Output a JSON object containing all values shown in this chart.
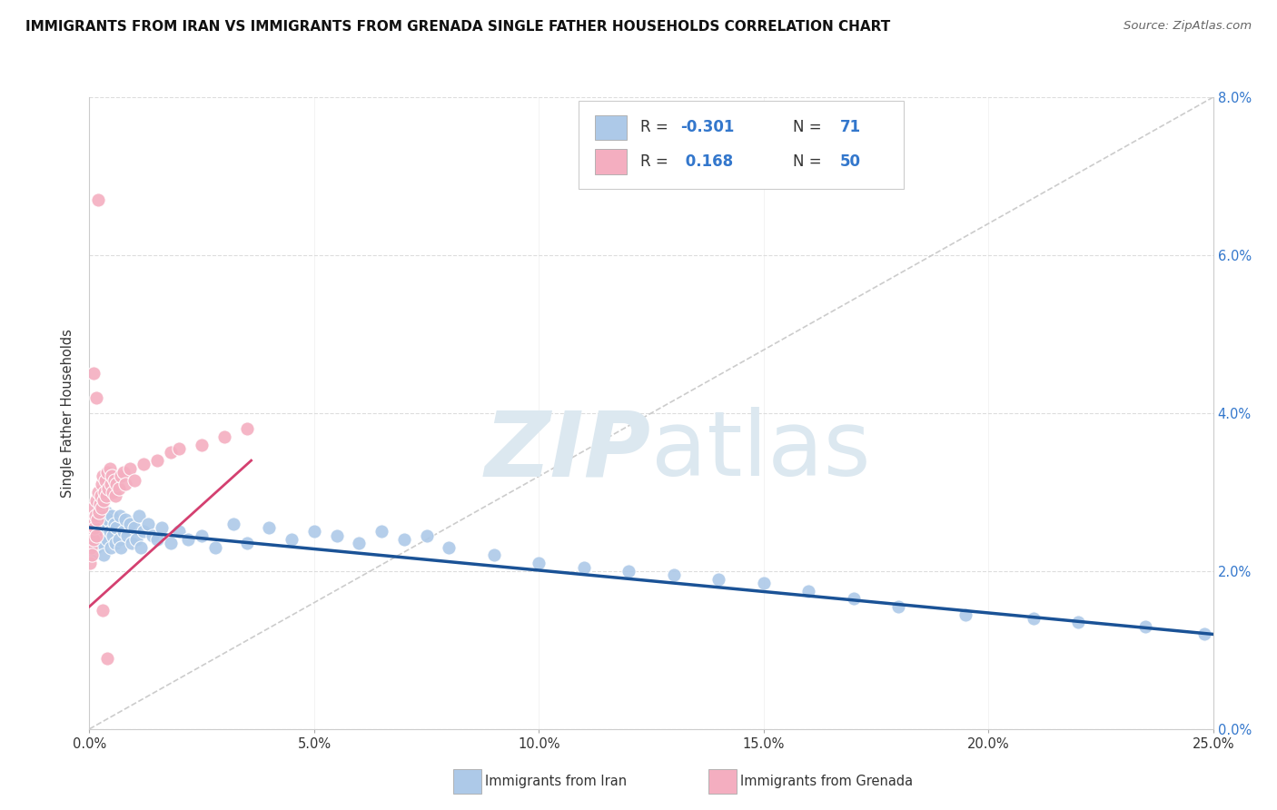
{
  "title": "IMMIGRANTS FROM IRAN VS IMMIGRANTS FROM GRENADA SINGLE FATHER HOUSEHOLDS CORRELATION CHART",
  "source": "Source: ZipAtlas.com",
  "ylabel": "Single Father Households",
  "right_yticks": [
    "0.0%",
    "2.0%",
    "4.0%",
    "6.0%",
    "8.0%"
  ],
  "right_yvalues": [
    0.0,
    2.0,
    4.0,
    6.0,
    8.0
  ],
  "xlim": [
    0.0,
    25.0
  ],
  "ylim": [
    0.0,
    8.0
  ],
  "iran_color": "#adc9e8",
  "iran_line_color": "#1a5296",
  "grenada_color": "#f4aec0",
  "grenada_line_color": "#d44070",
  "watermark_zip": "ZIP",
  "watermark_atlas": "atlas",
  "watermark_color": "#dce8f0",
  "iran_scatter_x": [
    0.05,
    0.08,
    0.1,
    0.12,
    0.15,
    0.18,
    0.2,
    0.22,
    0.25,
    0.28,
    0.3,
    0.32,
    0.35,
    0.38,
    0.4,
    0.42,
    0.45,
    0.48,
    0.5,
    0.52,
    0.55,
    0.58,
    0.6,
    0.65,
    0.68,
    0.7,
    0.75,
    0.8,
    0.85,
    0.9,
    0.95,
    1.0,
    1.05,
    1.1,
    1.15,
    1.2,
    1.3,
    1.4,
    1.5,
    1.6,
    1.8,
    2.0,
    2.2,
    2.5,
    2.8,
    3.2,
    3.5,
    4.0,
    4.5,
    5.0,
    5.5,
    6.0,
    6.5,
    7.0,
    7.5,
    8.0,
    9.0,
    10.0,
    11.0,
    12.0,
    13.0,
    14.0,
    15.0,
    16.0,
    17.0,
    18.0,
    19.5,
    21.0,
    22.0,
    23.5,
    24.8
  ],
  "iran_scatter_y": [
    2.2,
    2.6,
    2.4,
    2.55,
    2.3,
    2.7,
    2.45,
    2.8,
    2.5,
    2.35,
    2.6,
    2.2,
    2.55,
    2.75,
    2.4,
    2.65,
    2.5,
    2.3,
    2.7,
    2.45,
    2.6,
    2.35,
    2.55,
    2.4,
    2.7,
    2.3,
    2.5,
    2.65,
    2.45,
    2.6,
    2.35,
    2.55,
    2.4,
    2.7,
    2.3,
    2.5,
    2.6,
    2.45,
    2.4,
    2.55,
    2.35,
    2.5,
    2.4,
    2.45,
    2.3,
    2.6,
    2.35,
    2.55,
    2.4,
    2.5,
    2.45,
    2.35,
    2.5,
    2.4,
    2.45,
    2.3,
    2.2,
    2.1,
    2.05,
    2.0,
    1.95,
    1.9,
    1.85,
    1.75,
    1.65,
    1.55,
    1.45,
    1.4,
    1.35,
    1.3,
    1.2
  ],
  "grenada_scatter_x": [
    0.02,
    0.04,
    0.05,
    0.06,
    0.08,
    0.09,
    0.1,
    0.12,
    0.13,
    0.15,
    0.16,
    0.18,
    0.2,
    0.22,
    0.24,
    0.25,
    0.27,
    0.28,
    0.3,
    0.32,
    0.34,
    0.35,
    0.38,
    0.4,
    0.42,
    0.45,
    0.48,
    0.5,
    0.52,
    0.55,
    0.58,
    0.6,
    0.65,
    0.7,
    0.75,
    0.8,
    0.9,
    1.0,
    1.2,
    1.5,
    1.8,
    2.0,
    2.5,
    3.0,
    3.5,
    0.1,
    0.2,
    0.3,
    0.4,
    0.15
  ],
  "grenada_scatter_y": [
    2.1,
    2.3,
    2.5,
    2.2,
    2.6,
    2.4,
    2.8,
    2.55,
    2.7,
    2.45,
    2.9,
    2.65,
    3.0,
    2.75,
    2.85,
    2.95,
    3.1,
    2.8,
    3.2,
    2.9,
    3.0,
    3.15,
    2.95,
    3.25,
    3.05,
    3.3,
    3.1,
    3.2,
    3.0,
    3.15,
    2.95,
    3.1,
    3.05,
    3.2,
    3.25,
    3.1,
    3.3,
    3.15,
    3.35,
    3.4,
    3.5,
    3.55,
    3.6,
    3.7,
    3.8,
    4.5,
    6.7,
    1.5,
    0.9,
    4.2
  ],
  "iran_trend_x0": 0.0,
  "iran_trend_x1": 25.0,
  "iran_trend_y0": 2.55,
  "iran_trend_y1": 1.2,
  "grenada_trend_x0": 0.0,
  "grenada_trend_x1": 3.6,
  "grenada_trend_y0": 1.55,
  "grenada_trend_y1": 3.4
}
